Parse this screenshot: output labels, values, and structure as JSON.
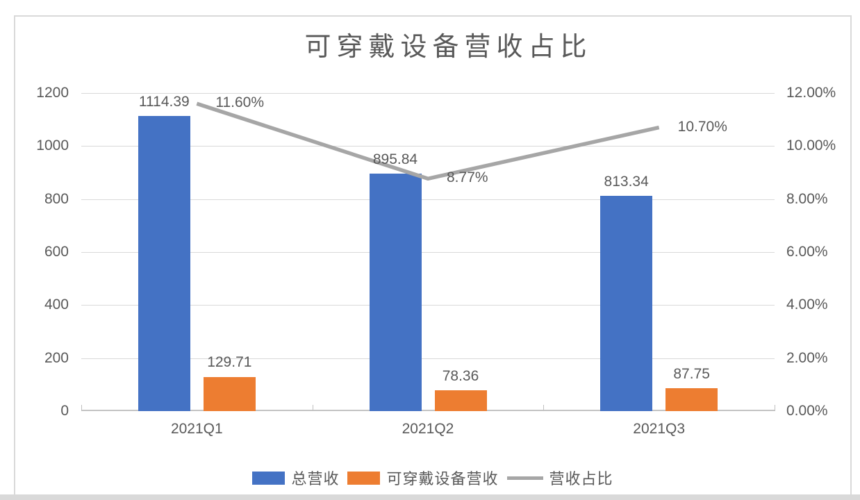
{
  "chart_data": {
    "type": "bar",
    "subtype": "combo-bar-line",
    "title": "可穿戴设备营收占比",
    "categories": [
      "2021Q1",
      "2021Q2",
      "2021Q3"
    ],
    "bar_series": [
      {
        "name": "总营收",
        "color": "#4472C4",
        "values": [
          1114.39,
          895.84,
          813.34
        ],
        "labels": [
          "1114.39",
          "895.84",
          "813.34"
        ],
        "axis": "left"
      },
      {
        "name": "可穿戴设备营收",
        "color": "#ED7D31",
        "values": [
          129.71,
          78.36,
          87.75
        ],
        "labels": [
          "129.71",
          "78.36",
          "87.75"
        ],
        "axis": "left"
      }
    ],
    "line_series": {
      "name": "营收占比",
      "color": "#A6A6A6",
      "values": [
        11.6,
        8.77,
        10.7
      ],
      "labels": [
        "11.60%",
        "8.77%",
        "10.70%"
      ],
      "axis": "right"
    },
    "left_axis": {
      "min": 0,
      "max": 1200,
      "step": 200,
      "ticks": [
        "0",
        "200",
        "400",
        "600",
        "800",
        "1000",
        "1200"
      ]
    },
    "right_axis": {
      "min": 0,
      "max": 12,
      "step": 2,
      "ticks": [
        "0.00%",
        "2.00%",
        "4.00%",
        "6.00%",
        "8.00%",
        "10.00%",
        "12.00%"
      ]
    },
    "grid": true,
    "legend_position": "bottom",
    "colors": {
      "gridline": "#d9d9d9",
      "axis_text": "#595959",
      "frame_border": "#d9d9d9"
    }
  }
}
